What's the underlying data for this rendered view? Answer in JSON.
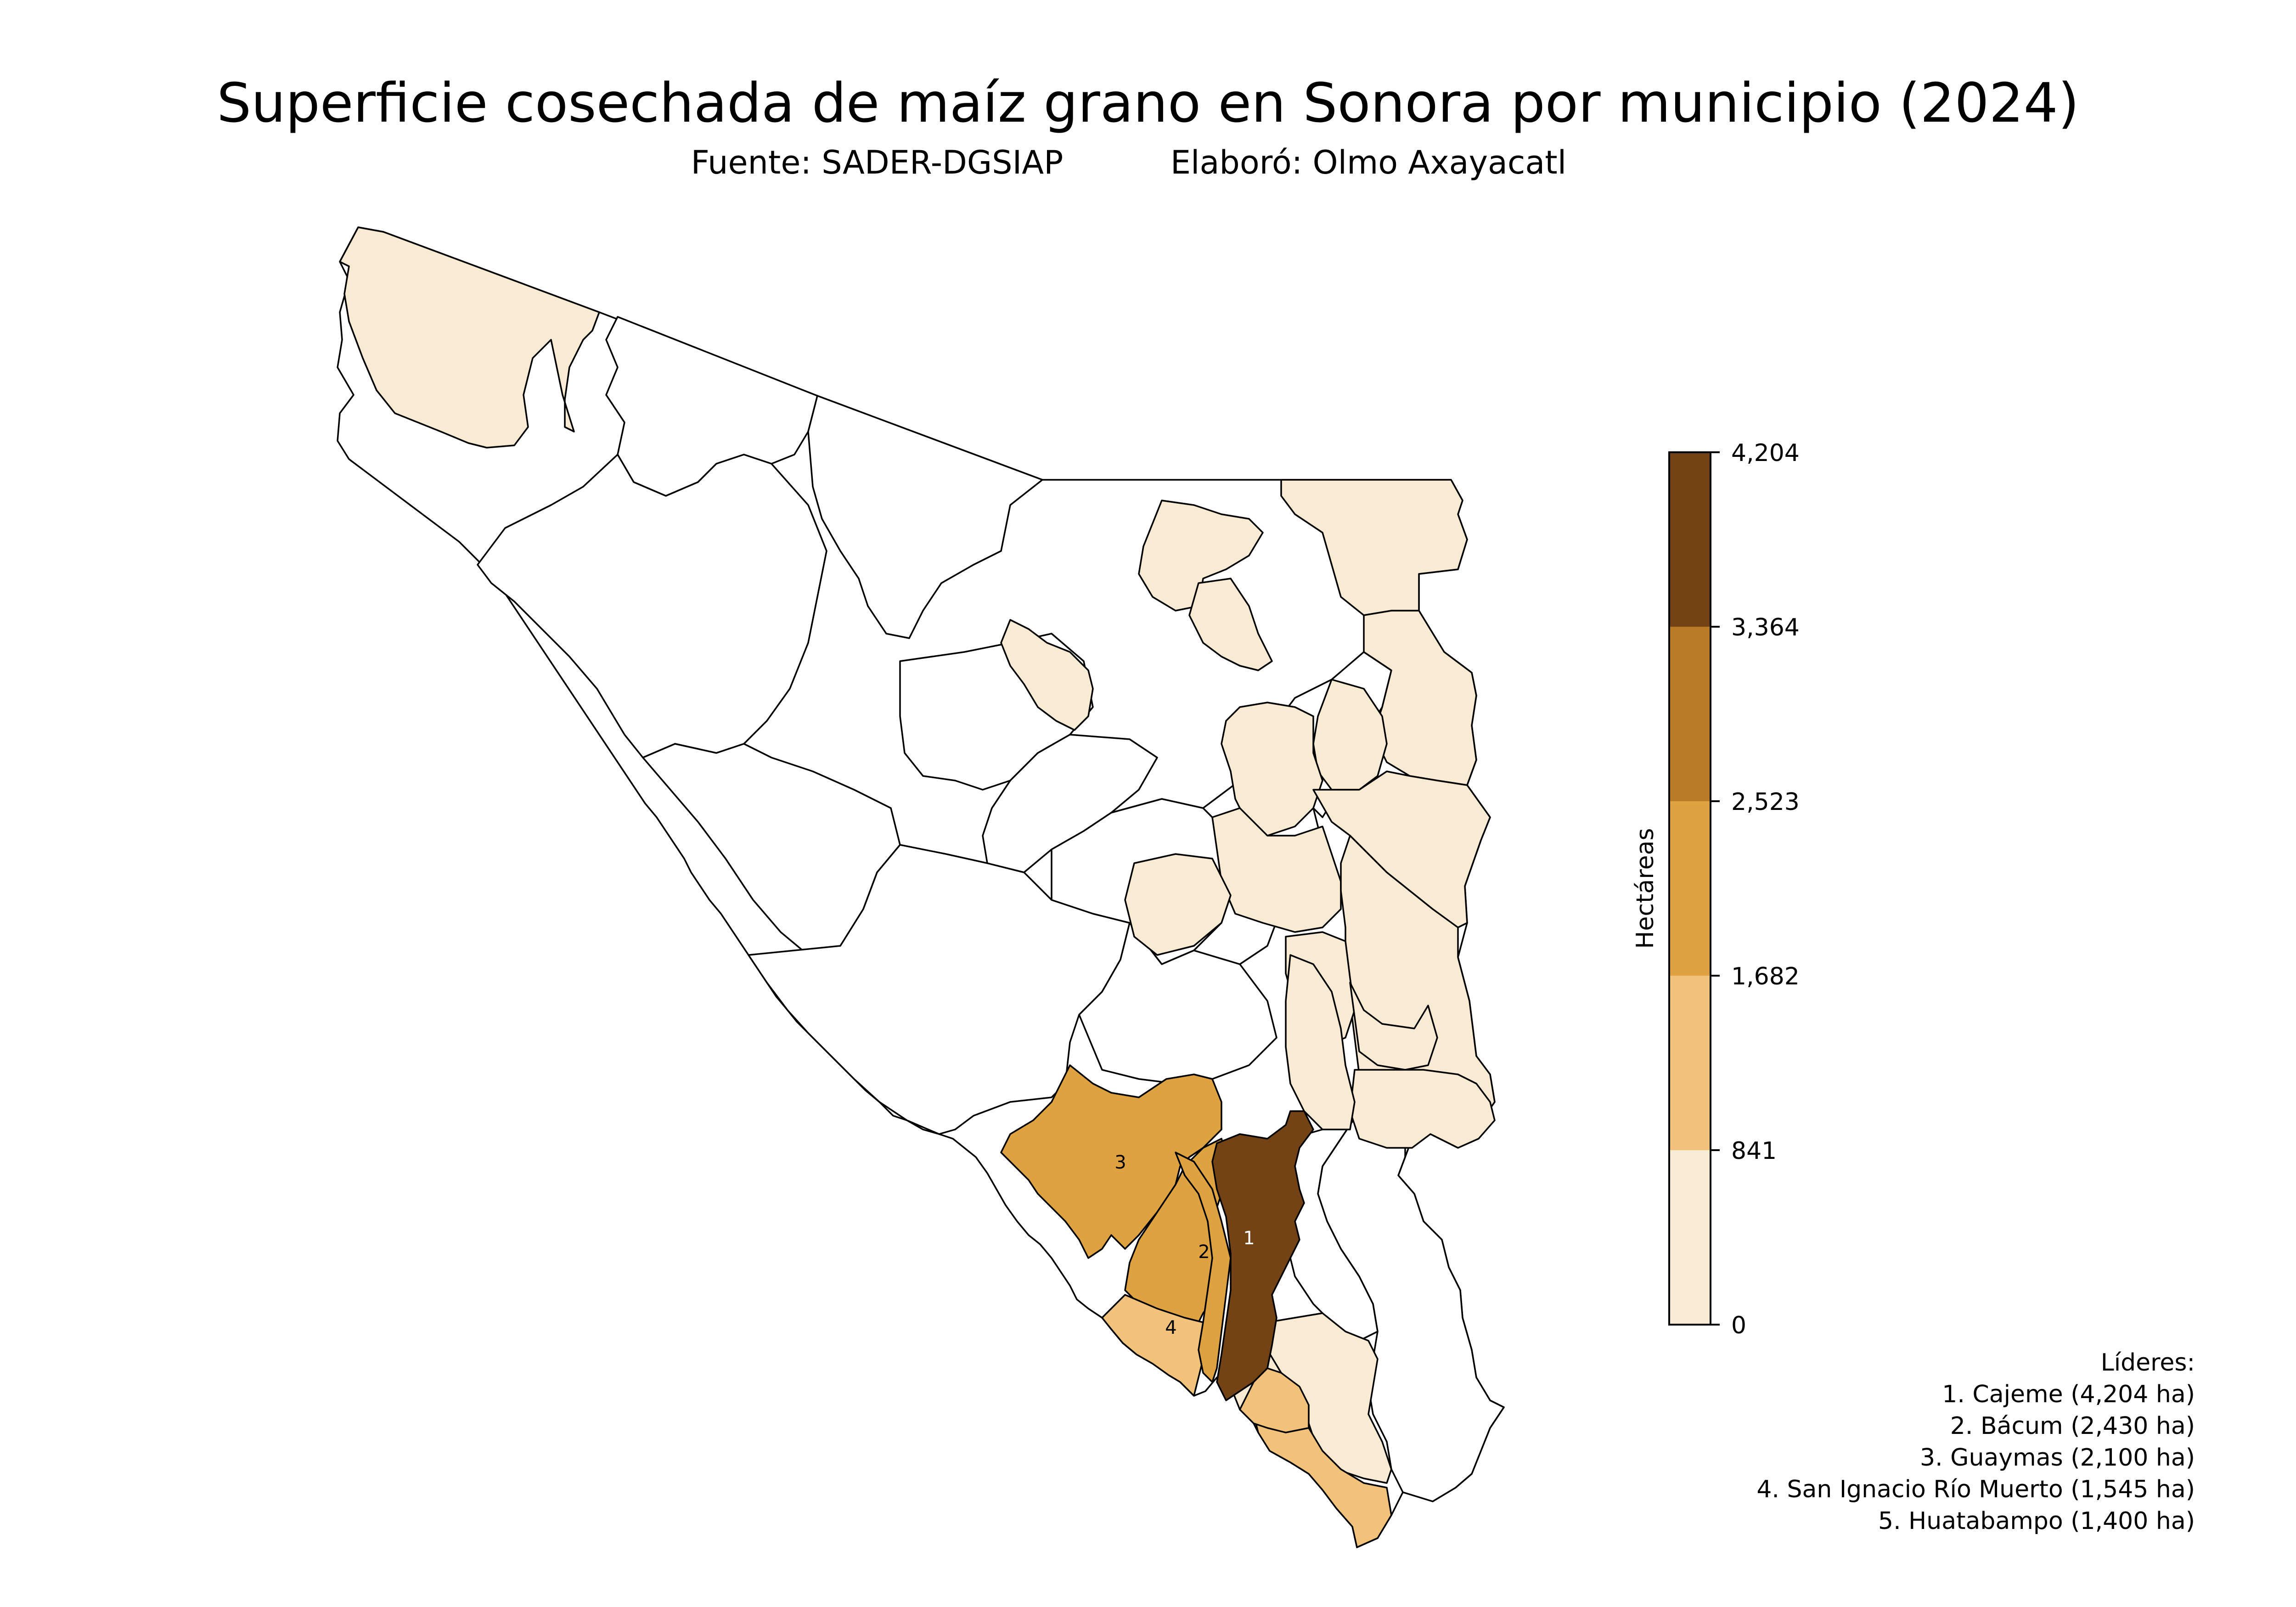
{
  "title": "Superficie cosechada de maíz grano en Sonora por municipio (2024)",
  "subtitle": {
    "source": "Fuente: SADER-DGSIAP",
    "author": "Elaboró: Olmo Axayacatl"
  },
  "colors": {
    "no_data": "#ffffff",
    "border": "#000000",
    "bins": [
      "#f9ead3",
      "#f2c27b",
      "#dfa241",
      "#b87a24",
      "#734315"
    ]
  },
  "colorbar": {
    "label": "Hectáreas",
    "ticks": [
      "4,204",
      "3,364",
      "2,523",
      "1,682",
      "841",
      "0"
    ],
    "tick_values": [
      4204,
      3364,
      2523,
      1682,
      841,
      0
    ]
  },
  "leaders": {
    "heading": "Líderes:",
    "items": [
      "1. Cajeme (4,204 ha)",
      "2. Bácum (2,430 ha)",
      "3. Guaymas (2,100 ha)",
      "4. San Ignacio Río Muerto (1,545 ha)",
      "5. Huatabampo (1,400 ha)"
    ]
  },
  "labels": {
    "cajeme": "1",
    "bacum": "2",
    "guaymas": "3",
    "san_ignacio": "4"
  }
}
